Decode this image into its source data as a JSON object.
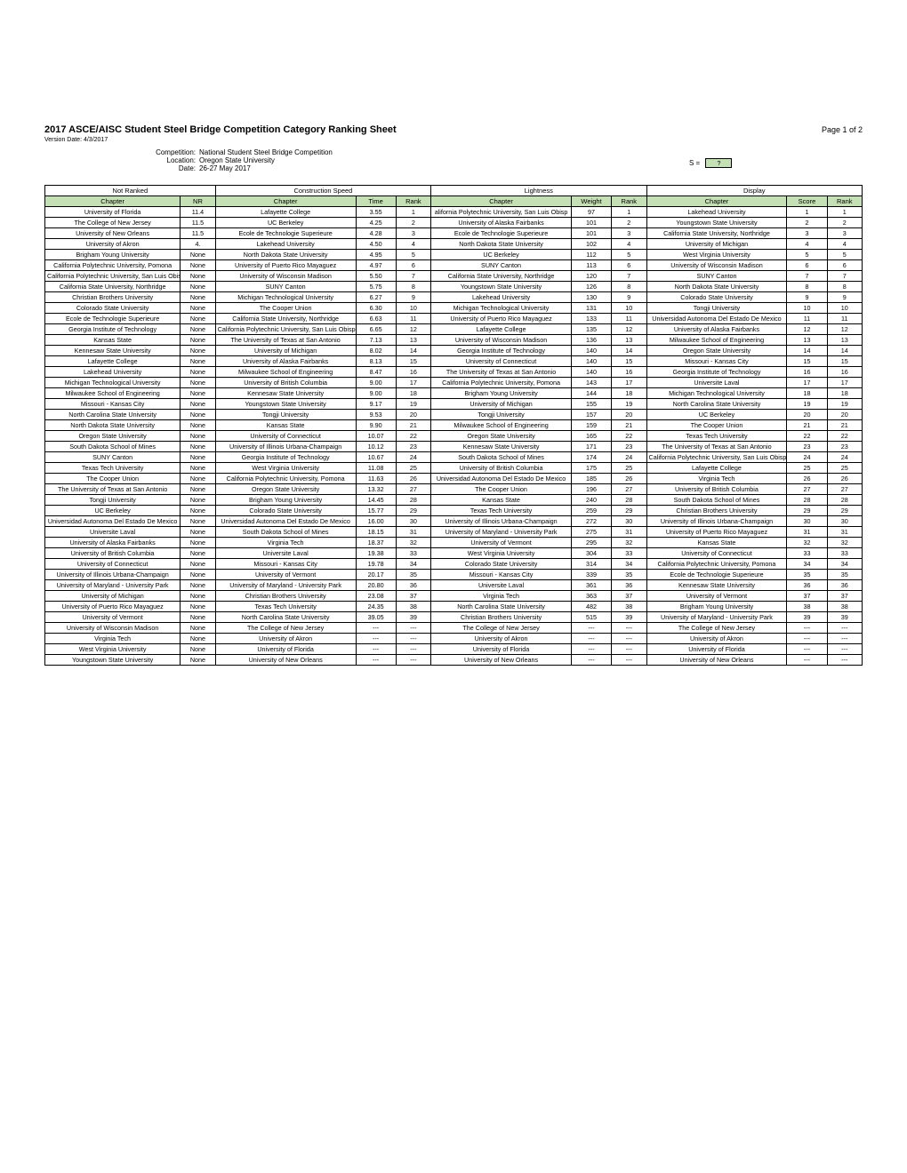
{
  "title": "2017 ASCE/AISC Student Steel Bridge Competition Category Ranking Sheet",
  "page": "Page 1 of 2",
  "version": "Version Date: 4/3/2017",
  "meta": {
    "competition_label": "Competition:",
    "competition": "National Student Steel Bridge Competition",
    "location_label": "Location:",
    "location": "Oregon State University",
    "date_label": "Date:",
    "date": "26-27 May 2017",
    "s_label": "S =",
    "s_value": "?"
  },
  "groups": [
    "Not Ranked",
    "Construction Speed",
    "Lightness",
    "Display"
  ],
  "cols": {
    "c1": "Chapter",
    "c2": "NR",
    "c3": "Chapter",
    "c4": "Time",
    "c5": "Rank",
    "c6": "Chapter",
    "c7": "Weight",
    "c8": "Rank",
    "c9": "Chapter",
    "c10": "Score",
    "c11": "Rank"
  },
  "widths": {
    "c1": "13.5%",
    "c2": "3.5%",
    "c3": "14%",
    "c4": "4%",
    "c5": "3.5%",
    "c6": "14%",
    "c7": "4%",
    "c8": "3.5%",
    "c9": "14%",
    "c10": "4%",
    "c11": "3.5%"
  },
  "colors": {
    "header_bg": "#c5e0b4",
    "border": "#000000"
  },
  "rows": [
    {
      "nr_ch": "University of Florida",
      "nr": "11.4",
      "cs_ch": "Lafayette College",
      "cs_t": "3.55",
      "cs_r": "1",
      "lt_ch": "alifornia Polytechnic University, San Luis Obisp",
      "lt_w": "97",
      "lt_r": "1",
      "dp_ch": "Lakehead University",
      "dp_s": "1",
      "dp_r": "1"
    },
    {
      "nr_ch": "The College of New Jersey",
      "nr": "11.5",
      "cs_ch": "UC Berkeley",
      "cs_t": "4.25",
      "cs_r": "2",
      "lt_ch": "University of Alaska Fairbanks",
      "lt_w": "101",
      "lt_r": "2",
      "dp_ch": "Youngstown State University",
      "dp_s": "2",
      "dp_r": "2"
    },
    {
      "nr_ch": "University of New Orleans",
      "nr": "11.5",
      "cs_ch": "Ecole de Technologie Superieure",
      "cs_t": "4.28",
      "cs_r": "3",
      "lt_ch": "Ecole de Technologie Superieure",
      "lt_w": "101",
      "lt_r": "3",
      "dp_ch": "California State University, Northridge",
      "dp_s": "3",
      "dp_r": "3"
    },
    {
      "nr_ch": "University of Akron",
      "nr": "4.",
      "cs_ch": "Lakehead University",
      "cs_t": "4.50",
      "cs_r": "4",
      "lt_ch": "North Dakota State University",
      "lt_w": "102",
      "lt_r": "4",
      "dp_ch": "University of Michigan",
      "dp_s": "4",
      "dp_r": "4"
    },
    {
      "nr_ch": "Brigham Young University",
      "nr": "None",
      "cs_ch": "North Dakota State University",
      "cs_t": "4.95",
      "cs_r": "5",
      "lt_ch": "UC Berkeley",
      "lt_w": "112",
      "lt_r": "5",
      "dp_ch": "West Virginia University",
      "dp_s": "5",
      "dp_r": "5"
    },
    {
      "nr_ch": "California Polytechnic University, Pomona",
      "nr": "None",
      "cs_ch": "University of Puerto Rico Mayaguez",
      "cs_t": "4.97",
      "cs_r": "6",
      "lt_ch": "SUNY Canton",
      "lt_w": "113",
      "lt_r": "6",
      "dp_ch": "University of Wisconsin Madison",
      "dp_s": "6",
      "dp_r": "6"
    },
    {
      "nr_ch": "California Polytechnic University, San Luis Obispo",
      "nr": "None",
      "cs_ch": "University of Wisconsin Madison",
      "cs_t": "5.50",
      "cs_r": "7",
      "lt_ch": "California State University, Northridge",
      "lt_w": "120",
      "lt_r": "7",
      "dp_ch": "SUNY Canton",
      "dp_s": "7",
      "dp_r": "7"
    },
    {
      "nr_ch": "California State University, Northridge",
      "nr": "None",
      "cs_ch": "SUNY Canton",
      "cs_t": "5.75",
      "cs_r": "8",
      "lt_ch": "Youngstown State University",
      "lt_w": "126",
      "lt_r": "8",
      "dp_ch": "North Dakota State University",
      "dp_s": "8",
      "dp_r": "8"
    },
    {
      "nr_ch": "Christian Brothers University",
      "nr": "None",
      "cs_ch": "Michigan Technological University",
      "cs_t": "6.27",
      "cs_r": "9",
      "lt_ch": "Lakehead University",
      "lt_w": "130",
      "lt_r": "9",
      "dp_ch": "Colorado State University",
      "dp_s": "9",
      "dp_r": "9"
    },
    {
      "nr_ch": "Colorado State University",
      "nr": "None",
      "cs_ch": "The Cooper Union",
      "cs_t": "6.30",
      "cs_r": "10",
      "lt_ch": "Michigan Technological University",
      "lt_w": "131",
      "lt_r": "10",
      "dp_ch": "Tongji University",
      "dp_s": "10",
      "dp_r": "10"
    },
    {
      "nr_ch": "Ecole de Technologie Superieure",
      "nr": "None",
      "cs_ch": "California State University, Northridge",
      "cs_t": "6.63",
      "cs_r": "11",
      "lt_ch": "University of Puerto Rico Mayaguez",
      "lt_w": "133",
      "lt_r": "11",
      "dp_ch": "Universidad Autonoma Del Estado De Mexico",
      "dp_s": "11",
      "dp_r": "11"
    },
    {
      "nr_ch": "Georgia Institute of Technology",
      "nr": "None",
      "cs_ch": "California Polytechnic University, San Luis Obispo",
      "cs_t": "6.65",
      "cs_r": "12",
      "lt_ch": "Lafayette College",
      "lt_w": "135",
      "lt_r": "12",
      "dp_ch": "University of Alaska Fairbanks",
      "dp_s": "12",
      "dp_r": "12"
    },
    {
      "nr_ch": "Kansas State",
      "nr": "None",
      "cs_ch": "The University of Texas at San Antonio",
      "cs_t": "7.13",
      "cs_r": "13",
      "lt_ch": "University of Wisconsin Madison",
      "lt_w": "136",
      "lt_r": "13",
      "dp_ch": "Milwaukee School of Engineering",
      "dp_s": "13",
      "dp_r": "13"
    },
    {
      "nr_ch": "Kennesaw State University",
      "nr": "None",
      "cs_ch": "University of Michigan",
      "cs_t": "8.02",
      "cs_r": "14",
      "lt_ch": "Georgia Institute of Technology",
      "lt_w": "140",
      "lt_r": "14",
      "dp_ch": "Oregon State University",
      "dp_s": "14",
      "dp_r": "14"
    },
    {
      "nr_ch": "Lafayette College",
      "nr": "None",
      "cs_ch": "University of Alaska Fairbanks",
      "cs_t": "8.13",
      "cs_r": "15",
      "lt_ch": "University of Connecticut",
      "lt_w": "140",
      "lt_r": "15",
      "dp_ch": "Missouri - Kansas City",
      "dp_s": "15",
      "dp_r": "15"
    },
    {
      "nr_ch": "Lakehead University",
      "nr": "None",
      "cs_ch": "Milwaukee School of Engineering",
      "cs_t": "8.47",
      "cs_r": "16",
      "lt_ch": "The University of Texas at San Antonio",
      "lt_w": "140",
      "lt_r": "16",
      "dp_ch": "Georgia Institute of Technology",
      "dp_s": "16",
      "dp_r": "16"
    },
    {
      "nr_ch": "Michigan Technological University",
      "nr": "None",
      "cs_ch": "University of British Columbia",
      "cs_t": "9.00",
      "cs_r": "17",
      "lt_ch": "California Polytechnic University, Pomona",
      "lt_w": "143",
      "lt_r": "17",
      "dp_ch": "Universite Laval",
      "dp_s": "17",
      "dp_r": "17"
    },
    {
      "nr_ch": "Milwaukee School of Engineering",
      "nr": "None",
      "cs_ch": "Kennesaw State University",
      "cs_t": "9.00",
      "cs_r": "18",
      "lt_ch": "Brigham Young University",
      "lt_w": "144",
      "lt_r": "18",
      "dp_ch": "Michigan Technological University",
      "dp_s": "18",
      "dp_r": "18"
    },
    {
      "nr_ch": "Missouri - Kansas City",
      "nr": "None",
      "cs_ch": "Youngstown State University",
      "cs_t": "9.17",
      "cs_r": "19",
      "lt_ch": "University of Michigan",
      "lt_w": "155",
      "lt_r": "19",
      "dp_ch": "North Carolina State University",
      "dp_s": "19",
      "dp_r": "19"
    },
    {
      "nr_ch": "North Carolina State University",
      "nr": "None",
      "cs_ch": "Tongji University",
      "cs_t": "9.53",
      "cs_r": "20",
      "lt_ch": "Tongji University",
      "lt_w": "157",
      "lt_r": "20",
      "dp_ch": "UC Berkeley",
      "dp_s": "20",
      "dp_r": "20"
    },
    {
      "nr_ch": "North Dakota State University",
      "nr": "None",
      "cs_ch": "Kansas State",
      "cs_t": "9.90",
      "cs_r": "21",
      "lt_ch": "Milwaukee School of Engineering",
      "lt_w": "159",
      "lt_r": "21",
      "dp_ch": "The Cooper Union",
      "dp_s": "21",
      "dp_r": "21"
    },
    {
      "nr_ch": "Oregon State University",
      "nr": "None",
      "cs_ch": "University of Connecticut",
      "cs_t": "10.07",
      "cs_r": "22",
      "lt_ch": "Oregon State University",
      "lt_w": "165",
      "lt_r": "22",
      "dp_ch": "Texas Tech University",
      "dp_s": "22",
      "dp_r": "22"
    },
    {
      "nr_ch": "South Dakota School of Mines",
      "nr": "None",
      "cs_ch": "University of Illinois Urbana-Champaign",
      "cs_t": "10.12",
      "cs_r": "23",
      "lt_ch": "Kennesaw State University",
      "lt_w": "171",
      "lt_r": "23",
      "dp_ch": "The University of Texas at San Antonio",
      "dp_s": "23",
      "dp_r": "23"
    },
    {
      "nr_ch": "SUNY Canton",
      "nr": "None",
      "cs_ch": "Georgia Institute of Technology",
      "cs_t": "10.67",
      "cs_r": "24",
      "lt_ch": "South Dakota School of Mines",
      "lt_w": "174",
      "lt_r": "24",
      "dp_ch": "California Polytechnic University, San Luis Obispo",
      "dp_s": "24",
      "dp_r": "24"
    },
    {
      "nr_ch": "Texas Tech University",
      "nr": "None",
      "cs_ch": "West Virginia University",
      "cs_t": "11.08",
      "cs_r": "25",
      "lt_ch": "University of British Columbia",
      "lt_w": "175",
      "lt_r": "25",
      "dp_ch": "Lafayette College",
      "dp_s": "25",
      "dp_r": "25"
    },
    {
      "nr_ch": "The Cooper Union",
      "nr": "None",
      "cs_ch": "California Polytechnic University, Pomona",
      "cs_t": "11.63",
      "cs_r": "26",
      "lt_ch": "Universidad Autonoma Del Estado De Mexico",
      "lt_w": "185",
      "lt_r": "26",
      "dp_ch": "Virginia Tech",
      "dp_s": "26",
      "dp_r": "26"
    },
    {
      "nr_ch": "The University of Texas at San Antonio",
      "nr": "None",
      "cs_ch": "Oregon State University",
      "cs_t": "13.32",
      "cs_r": "27",
      "lt_ch": "The Cooper Union",
      "lt_w": "196",
      "lt_r": "27",
      "dp_ch": "University of British Columbia",
      "dp_s": "27",
      "dp_r": "27"
    },
    {
      "nr_ch": "Tongji University",
      "nr": "None",
      "cs_ch": "Brigham Young University",
      "cs_t": "14.45",
      "cs_r": "28",
      "lt_ch": "Kansas State",
      "lt_w": "240",
      "lt_r": "28",
      "dp_ch": "South Dakota School of Mines",
      "dp_s": "28",
      "dp_r": "28"
    },
    {
      "nr_ch": "UC Berkeley",
      "nr": "None",
      "cs_ch": "Colorado State University",
      "cs_t": "15.77",
      "cs_r": "29",
      "lt_ch": "Texas Tech University",
      "lt_w": "259",
      "lt_r": "29",
      "dp_ch": "Christian Brothers University",
      "dp_s": "29",
      "dp_r": "29"
    },
    {
      "nr_ch": "Universidad Autonoma Del Estado De Mexico",
      "nr": "None",
      "cs_ch": "Universidad Autonoma Del Estado De Mexico",
      "cs_t": "16.00",
      "cs_r": "30",
      "lt_ch": "University of Illinois Urbana-Champaign",
      "lt_w": "272",
      "lt_r": "30",
      "dp_ch": "University of Illinois Urbana-Champaign",
      "dp_s": "30",
      "dp_r": "30"
    },
    {
      "nr_ch": "Universite Laval",
      "nr": "None",
      "cs_ch": "South Dakota School of Mines",
      "cs_t": "18.15",
      "cs_r": "31",
      "lt_ch": "University of Maryland - University Park",
      "lt_w": "275",
      "lt_r": "31",
      "dp_ch": "University of Puerto Rico Mayaguez",
      "dp_s": "31",
      "dp_r": "31"
    },
    {
      "nr_ch": "University of Alaska Fairbanks",
      "nr": "None",
      "cs_ch": "Virginia Tech",
      "cs_t": "18.37",
      "cs_r": "32",
      "lt_ch": "University of Vermont",
      "lt_w": "295",
      "lt_r": "32",
      "dp_ch": "Kansas State",
      "dp_s": "32",
      "dp_r": "32"
    },
    {
      "nr_ch": "University of British Columbia",
      "nr": "None",
      "cs_ch": "Universite Laval",
      "cs_t": "19.38",
      "cs_r": "33",
      "lt_ch": "West Virginia University",
      "lt_w": "304",
      "lt_r": "33",
      "dp_ch": "University of Connecticut",
      "dp_s": "33",
      "dp_r": "33"
    },
    {
      "nr_ch": "University of Connecticut",
      "nr": "None",
      "cs_ch": "Missouri - Kansas City",
      "cs_t": "19.78",
      "cs_r": "34",
      "lt_ch": "Colorado State University",
      "lt_w": "314",
      "lt_r": "34",
      "dp_ch": "California Polytechnic University, Pomona",
      "dp_s": "34",
      "dp_r": "34"
    },
    {
      "nr_ch": "University of Illinois Urbana-Champaign",
      "nr": "None",
      "cs_ch": "University of Vermont",
      "cs_t": "20.17",
      "cs_r": "35",
      "lt_ch": "Missouri - Kansas City",
      "lt_w": "339",
      "lt_r": "35",
      "dp_ch": "Ecole de Technologie Superieure",
      "dp_s": "35",
      "dp_r": "35"
    },
    {
      "nr_ch": "University of Maryland - University Park",
      "nr": "None",
      "cs_ch": "University of Maryland - University Park",
      "cs_t": "20.80",
      "cs_r": "36",
      "lt_ch": "Universite Laval",
      "lt_w": "361",
      "lt_r": "36",
      "dp_ch": "Kennesaw State University",
      "dp_s": "36",
      "dp_r": "36"
    },
    {
      "nr_ch": "University of Michigan",
      "nr": "None",
      "cs_ch": "Christian Brothers University",
      "cs_t": "23.08",
      "cs_r": "37",
      "lt_ch": "Virginia Tech",
      "lt_w": "363",
      "lt_r": "37",
      "dp_ch": "University of Vermont",
      "dp_s": "37",
      "dp_r": "37"
    },
    {
      "nr_ch": "University of Puerto Rico Mayaguez",
      "nr": "None",
      "cs_ch": "Texas Tech University",
      "cs_t": "24.35",
      "cs_r": "38",
      "lt_ch": "North Carolina State University",
      "lt_w": "482",
      "lt_r": "38",
      "dp_ch": "Brigham Young University",
      "dp_s": "38",
      "dp_r": "38"
    },
    {
      "nr_ch": "University of Vermont",
      "nr": "None",
      "cs_ch": "North Carolina State University",
      "cs_t": "39.05",
      "cs_r": "39",
      "lt_ch": "Christian Brothers University",
      "lt_w": "515",
      "lt_r": "39",
      "dp_ch": "University of Maryland - University Park",
      "dp_s": "39",
      "dp_r": "39"
    },
    {
      "nr_ch": "University of Wisconsin Madison",
      "nr": "None",
      "cs_ch": "The College of New Jersey",
      "cs_t": "---",
      "cs_r": "---",
      "lt_ch": "The College of New Jersey",
      "lt_w": "---",
      "lt_r": "---",
      "dp_ch": "The College of New Jersey",
      "dp_s": "---",
      "dp_r": "---"
    },
    {
      "nr_ch": "Virginia Tech",
      "nr": "None",
      "cs_ch": "University of Akron",
      "cs_t": "---",
      "cs_r": "---",
      "lt_ch": "University of Akron",
      "lt_w": "---",
      "lt_r": "---",
      "dp_ch": "University of Akron",
      "dp_s": "---",
      "dp_r": "---"
    },
    {
      "nr_ch": "West Virginia University",
      "nr": "None",
      "cs_ch": "University of Florida",
      "cs_t": "---",
      "cs_r": "---",
      "lt_ch": "University of Florida",
      "lt_w": "---",
      "lt_r": "---",
      "dp_ch": "University of Florida",
      "dp_s": "---",
      "dp_r": "---"
    },
    {
      "nr_ch": "Youngstown State University",
      "nr": "None",
      "cs_ch": "University of New Orleans",
      "cs_t": "---",
      "cs_r": "---",
      "lt_ch": "University of New Orleans",
      "lt_w": "---",
      "lt_r": "---",
      "dp_ch": "University of New Orleans",
      "dp_s": "---",
      "dp_r": "---"
    }
  ]
}
